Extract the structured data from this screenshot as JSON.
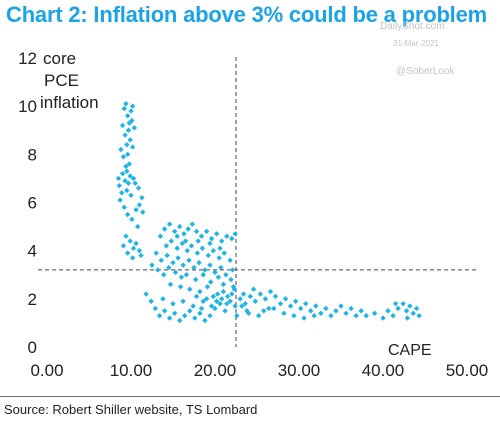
{
  "header": {
    "title": "Chart 2: Inflation above 3% could be a problem"
  },
  "watermark": {
    "name": "DailyShot.com",
    "date": "31-Mar-2021",
    "handle": "@SoberLook"
  },
  "footer": {
    "source": "Source: Robert Shiller website, TS Lombard"
  },
  "colors": {
    "title": "#1aa3e8",
    "points": "#1eb4e6",
    "axis_text": "#222222",
    "reference_lines": "#444444"
  },
  "chart_data": {
    "type": "scatter",
    "title": "Chart 2: Inflation above 3% could be a problem",
    "xlabel": "CAPE",
    "ylabel": "core PCE inflation",
    "xlim": [
      0,
      50
    ],
    "ylim": [
      0,
      12
    ],
    "x_ticks": [
      "0.00",
      "10.00",
      "20.00",
      "30.00",
      "40.00",
      "50.00"
    ],
    "y_ticks": [
      "0",
      "2",
      "4",
      "6",
      "8",
      "10",
      "12"
    ],
    "grid": false,
    "legend": "none",
    "reference_lines": {
      "x": 22.5,
      "y": 3.2
    },
    "series": [
      {
        "values": [
          [
            9.2,
            9.9
          ],
          [
            9.4,
            10.1
          ],
          [
            9.6,
            9.6
          ],
          [
            9.8,
            9.3
          ],
          [
            10.0,
            9.8
          ],
          [
            10.2,
            10.0
          ],
          [
            9.0,
            9.2
          ],
          [
            9.3,
            8.8
          ],
          [
            9.7,
            9.0
          ],
          [
            10.1,
            9.4
          ],
          [
            9.5,
            8.4
          ],
          [
            9.9,
            8.6
          ],
          [
            8.8,
            8.2
          ],
          [
            9.1,
            7.9
          ],
          [
            9.6,
            8.0
          ],
          [
            10.2,
            8.3
          ],
          [
            9.4,
            7.5
          ],
          [
            9.8,
            7.6
          ],
          [
            9.0,
            7.2
          ],
          [
            9.3,
            6.9
          ],
          [
            9.7,
            6.8
          ],
          [
            10.3,
            7.0
          ],
          [
            8.6,
            6.7
          ],
          [
            8.9,
            6.4
          ],
          [
            9.5,
            6.5
          ],
          [
            10.0,
            6.3
          ],
          [
            10.5,
            6.8
          ],
          [
            10.9,
            6.6
          ],
          [
            11.3,
            6.2
          ],
          [
            11.0,
            5.9
          ],
          [
            10.6,
            5.7
          ],
          [
            8.7,
            6.1
          ],
          [
            9.2,
            5.8
          ],
          [
            9.6,
            5.5
          ],
          [
            10.1,
            5.3
          ],
          [
            10.8,
            5.0
          ],
          [
            11.4,
            5.6
          ],
          [
            9.4,
            4.6
          ],
          [
            9.9,
            4.4
          ],
          [
            9.1,
            4.2
          ],
          [
            10.3,
            4.1
          ],
          [
            10.6,
            4.3
          ],
          [
            9.6,
            3.9
          ],
          [
            10.2,
            3.7
          ],
          [
            11.0,
            4.0
          ],
          [
            11.2,
            3.8
          ],
          [
            9.5,
            7.3
          ],
          [
            9.9,
            7.1
          ],
          [
            8.5,
            7.0
          ],
          [
            10.4,
            9.1
          ],
          [
            13.5,
            4.6
          ],
          [
            14.0,
            4.9
          ],
          [
            14.6,
            5.1
          ],
          [
            15.2,
            4.8
          ],
          [
            15.8,
            5.0
          ],
          [
            16.3,
            4.7
          ],
          [
            16.8,
            4.9
          ],
          [
            17.3,
            5.1
          ],
          [
            17.8,
            4.8
          ],
          [
            18.4,
            4.6
          ],
          [
            19.0,
            4.8
          ],
          [
            19.6,
            4.5
          ],
          [
            20.2,
            4.7
          ],
          [
            20.8,
            4.4
          ],
          [
            21.4,
            4.6
          ],
          [
            22.0,
            4.5
          ],
          [
            22.4,
            4.7
          ],
          [
            14.2,
            4.2
          ],
          [
            14.8,
            4.4
          ],
          [
            15.5,
            4.1
          ],
          [
            16.1,
            4.3
          ],
          [
            16.7,
            4.0
          ],
          [
            17.2,
            4.2
          ],
          [
            17.9,
            3.9
          ],
          [
            18.5,
            4.1
          ],
          [
            19.2,
            3.8
          ],
          [
            19.8,
            4.0
          ],
          [
            20.5,
            3.7
          ],
          [
            21.1,
            3.9
          ],
          [
            21.8,
            3.6
          ],
          [
            13.0,
            3.9
          ],
          [
            13.6,
            3.6
          ],
          [
            14.3,
            3.8
          ],
          [
            15.0,
            3.5
          ],
          [
            15.6,
            3.7
          ],
          [
            16.2,
            3.4
          ],
          [
            16.9,
            3.6
          ],
          [
            17.5,
            3.3
          ],
          [
            18.1,
            3.5
          ],
          [
            18.8,
            3.2
          ],
          [
            19.4,
            3.4
          ],
          [
            20.0,
            3.1
          ],
          [
            20.7,
            3.3
          ],
          [
            21.3,
            3.0
          ],
          [
            22.1,
            3.2
          ],
          [
            12.5,
            3.4
          ],
          [
            13.2,
            3.2
          ],
          [
            13.9,
            3.0
          ],
          [
            14.5,
            3.3
          ],
          [
            15.3,
            3.1
          ],
          [
            16.0,
            2.9
          ],
          [
            16.6,
            3.0
          ],
          [
            17.7,
            2.8
          ],
          [
            18.6,
            3.0
          ],
          [
            19.5,
            2.7
          ],
          [
            20.4,
            2.9
          ],
          [
            21.0,
            2.6
          ],
          [
            21.9,
            2.8
          ],
          [
            22.3,
            2.4
          ],
          [
            14.7,
            2.6
          ],
          [
            15.9,
            2.5
          ],
          [
            17.0,
            2.4
          ],
          [
            18.2,
            2.3
          ],
          [
            19.1,
            2.5
          ],
          [
            20.3,
            2.2
          ],
          [
            21.5,
            2.1
          ],
          [
            15.5,
            4.6
          ],
          [
            16.5,
            4.4
          ],
          [
            18.0,
            4.4
          ],
          [
            19.4,
            4.3
          ],
          [
            20.6,
            4.1
          ],
          [
            11.8,
            2.2
          ],
          [
            12.4,
            1.9
          ],
          [
            12.9,
            1.6
          ],
          [
            13.4,
            1.3
          ],
          [
            14.0,
            1.5
          ],
          [
            14.6,
            1.2
          ],
          [
            15.2,
            1.4
          ],
          [
            15.8,
            1.1
          ],
          [
            16.4,
            1.3
          ],
          [
            17.0,
            1.5
          ],
          [
            17.6,
            1.2
          ],
          [
            18.2,
            1.4
          ],
          [
            18.8,
            1.1
          ],
          [
            19.4,
            1.3
          ],
          [
            20.0,
            1.6
          ],
          [
            20.6,
            1.8
          ],
          [
            21.2,
            1.5
          ],
          [
            21.8,
            1.9
          ],
          [
            22.4,
            1.7
          ],
          [
            23.0,
            2.0
          ],
          [
            23.6,
            1.8
          ],
          [
            24.2,
            2.1
          ],
          [
            24.8,
            1.9
          ],
          [
            25.4,
            2.2
          ],
          [
            26.0,
            2.0
          ],
          [
            26.6,
            2.3
          ],
          [
            27.2,
            2.1
          ],
          [
            27.8,
            1.8
          ],
          [
            28.4,
            2.0
          ],
          [
            29.0,
            1.7
          ],
          [
            29.6,
            1.9
          ],
          [
            30.2,
            1.6
          ],
          [
            30.8,
            1.8
          ],
          [
            31.4,
            1.5
          ],
          [
            32.0,
            1.7
          ],
          [
            32.6,
            1.4
          ],
          [
            33.2,
            1.6
          ],
          [
            33.8,
            1.3
          ],
          [
            34.4,
            1.5
          ],
          [
            35.0,
            1.7
          ],
          [
            35.6,
            1.4
          ],
          [
            36.2,
            1.6
          ],
          [
            36.8,
            1.3
          ],
          [
            13.8,
            2.0
          ],
          [
            15.0,
            1.8
          ],
          [
            16.2,
            1.9
          ],
          [
            17.4,
            1.7
          ],
          [
            18.6,
            1.9
          ],
          [
            19.8,
            2.1
          ],
          [
            21.0,
            2.3
          ],
          [
            22.2,
            2.5
          ],
          [
            23.4,
            2.2
          ],
          [
            24.6,
            2.4
          ],
          [
            25.8,
            1.5
          ],
          [
            27.0,
            1.6
          ],
          [
            28.2,
            1.4
          ],
          [
            29.4,
            1.3
          ],
          [
            30.6,
            1.2
          ],
          [
            31.8,
            1.3
          ],
          [
            24.0,
            1.4
          ],
          [
            25.2,
            1.3
          ],
          [
            26.4,
            1.6
          ],
          [
            19.0,
            2.0
          ],
          [
            20.2,
            1.9
          ],
          [
            21.4,
            1.8
          ],
          [
            22.6,
            1.3
          ],
          [
            23.8,
            1.5
          ],
          [
            17.8,
            2.1
          ],
          [
            18.4,
            1.6
          ],
          [
            19.6,
            1.7
          ],
          [
            20.8,
            2.0
          ],
          [
            22.0,
            2.2
          ],
          [
            23.2,
            1.7
          ],
          [
            37.4,
            1.5
          ],
          [
            38.0,
            1.3
          ],
          [
            39.0,
            1.4
          ],
          [
            40.0,
            1.2
          ],
          [
            40.6,
            1.5
          ],
          [
            41.2,
            1.3
          ],
          [
            41.8,
            1.6
          ],
          [
            42.4,
            1.8
          ],
          [
            42.8,
            1.5
          ],
          [
            43.2,
            1.7
          ],
          [
            43.6,
            1.4
          ],
          [
            44.0,
            1.6
          ],
          [
            44.3,
            1.3
          ],
          [
            41.5,
            1.8
          ],
          [
            42.9,
            1.2
          ]
        ]
      }
    ]
  }
}
